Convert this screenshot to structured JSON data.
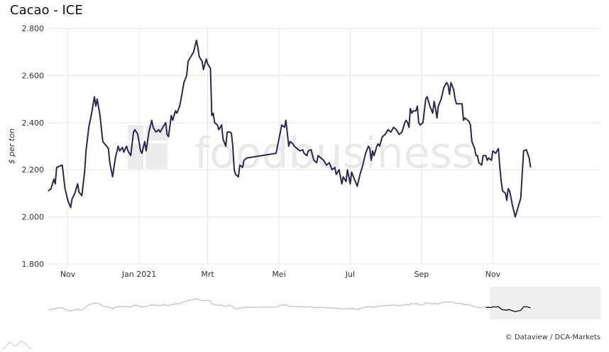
{
  "title": "Cacao - ICE",
  "credit": "© Dataview / DCA-Markets",
  "watermark": "foodbusiness",
  "chart_data": {
    "type": "line",
    "ylabel": "$ per ton",
    "ylim": [
      1800,
      2800
    ],
    "yticks": [
      {
        "value": 1800,
        "label": "1.800"
      },
      {
        "value": 2000,
        "label": "2.000"
      },
      {
        "value": 2200,
        "label": "2.200"
      },
      {
        "value": 2400,
        "label": "2.400"
      },
      {
        "value": 2600,
        "label": "2.600"
      },
      {
        "value": 2800,
        "label": "2.800"
      }
    ],
    "xlim": [
      0,
      395
    ],
    "xticks": [
      {
        "pos": 14,
        "label": "Nov"
      },
      {
        "pos": 65,
        "label": "Jan 2021"
      },
      {
        "pos": 114,
        "label": "Mrt"
      },
      {
        "pos": 165,
        "label": "Mei"
      },
      {
        "pos": 216,
        "label": "Jul"
      },
      {
        "pos": 267,
        "label": "Sep"
      },
      {
        "pos": 318,
        "label": "Nov"
      }
    ],
    "grid": true,
    "series": [
      {
        "color": "#2e2552",
        "points": [
          [
            0,
            2110
          ],
          [
            2,
            2120
          ],
          [
            4,
            2160
          ],
          [
            5,
            2140
          ],
          [
            6,
            2210
          ],
          [
            8,
            2215
          ],
          [
            10,
            2220
          ],
          [
            12,
            2120
          ],
          [
            14,
            2070
          ],
          [
            16,
            2040
          ],
          [
            17,
            2075
          ],
          [
            19,
            2100
          ],
          [
            21,
            2140
          ],
          [
            22,
            2105
          ],
          [
            24,
            2090
          ],
          [
            26,
            2190
          ],
          [
            27,
            2280
          ],
          [
            29,
            2380
          ],
          [
            31,
            2440
          ],
          [
            33,
            2510
          ],
          [
            34,
            2470
          ],
          [
            35,
            2500
          ],
          [
            37,
            2430
          ],
          [
            39,
            2320
          ],
          [
            41,
            2305
          ],
          [
            43,
            2290
          ],
          [
            44,
            2230
          ],
          [
            46,
            2170
          ],
          [
            48,
            2250
          ],
          [
            50,
            2300
          ],
          [
            51,
            2280
          ],
          [
            53,
            2295
          ],
          [
            54,
            2275
          ],
          [
            56,
            2300
          ],
          [
            57,
            2280
          ],
          [
            59,
            2260
          ],
          [
            61,
            2360
          ],
          [
            62,
            2370
          ],
          [
            64,
            2350
          ],
          [
            66,
            2280
          ],
          [
            67,
            2270
          ],
          [
            69,
            2320
          ],
          [
            70,
            2280
          ],
          [
            72,
            2360
          ],
          [
            74,
            2410
          ],
          [
            75,
            2380
          ],
          [
            77,
            2360
          ],
          [
            79,
            2370
          ],
          [
            80,
            2360
          ],
          [
            82,
            2380
          ],
          [
            84,
            2400
          ],
          [
            85,
            2350
          ],
          [
            86,
            2340
          ],
          [
            88,
            2430
          ],
          [
            89,
            2410
          ],
          [
            91,
            2450
          ],
          [
            92,
            2440
          ],
          [
            94,
            2470
          ],
          [
            95,
            2500
          ],
          [
            97,
            2570
          ],
          [
            99,
            2600
          ],
          [
            100,
            2660
          ],
          [
            102,
            2680
          ],
          [
            104,
            2700
          ],
          [
            106,
            2750
          ],
          [
            107,
            2720
          ],
          [
            108,
            2680
          ],
          [
            110,
            2660
          ],
          [
            111,
            2625
          ],
          [
            113,
            2670
          ],
          [
            114,
            2650
          ],
          [
            116,
            2630
          ],
          [
            117,
            2430
          ],
          [
            118,
            2440
          ],
          [
            119,
            2400
          ],
          [
            121,
            2390
          ],
          [
            122,
            2370
          ],
          [
            124,
            2390
          ],
          [
            125,
            2330
          ],
          [
            127,
            2300
          ],
          [
            128,
            2360
          ],
          [
            130,
            2360
          ],
          [
            131,
            2355
          ],
          [
            132,
            2300
          ],
          [
            133,
            2200
          ],
          [
            134,
            2180
          ],
          [
            136,
            2170
          ],
          [
            137,
            2220
          ],
          [
            139,
            2210
          ],
          [
            140,
            2240
          ],
          [
            142,
            2250
          ],
          [
            163,
            2270
          ],
          [
            164,
            2300
          ],
          [
            166,
            2360
          ],
          [
            167,
            2390
          ],
          [
            169,
            2380
          ],
          [
            170,
            2410
          ],
          [
            172,
            2300
          ],
          [
            173,
            2320
          ],
          [
            175,
            2310
          ],
          [
            176,
            2300
          ],
          [
            178,
            2290
          ],
          [
            180,
            2280
          ],
          [
            182,
            2285
          ],
          [
            183,
            2270
          ],
          [
            185,
            2260
          ],
          [
            186,
            2280
          ],
          [
            188,
            2285
          ],
          [
            190,
            2240
          ],
          [
            192,
            2230
          ],
          [
            193,
            2260
          ],
          [
            195,
            2250
          ],
          [
            197,
            2240
          ],
          [
            199,
            2220
          ],
          [
            201,
            2230
          ],
          [
            203,
            2200
          ],
          [
            205,
            2210
          ],
          [
            206,
            2180
          ],
          [
            208,
            2200
          ],
          [
            210,
            2140
          ],
          [
            211,
            2170
          ],
          [
            213,
            2150
          ],
          [
            214,
            2200
          ],
          [
            215,
            2170
          ],
          [
            216,
            2140
          ],
          [
            217,
            2190
          ],
          [
            219,
            2160
          ],
          [
            221,
            2130
          ],
          [
            223,
            2180
          ],
          [
            225,
            2220
          ],
          [
            227,
            2270
          ],
          [
            229,
            2300
          ],
          [
            230,
            2290
          ],
          [
            231,
            2240
          ],
          [
            232,
            2280
          ],
          [
            233,
            2260
          ],
          [
            235,
            2300
          ],
          [
            236,
            2310
          ],
          [
            237,
            2300
          ],
          [
            239,
            2340
          ],
          [
            241,
            2350
          ],
          [
            243,
            2370
          ],
          [
            245,
            2360
          ],
          [
            247,
            2380
          ],
          [
            249,
            2370
          ],
          [
            251,
            2350
          ],
          [
            253,
            2360
          ],
          [
            255,
            2400
          ],
          [
            256,
            2410
          ],
          [
            257,
            2400
          ],
          [
            258,
            2380
          ],
          [
            259,
            2460
          ],
          [
            260,
            2440
          ],
          [
            261,
            2450
          ],
          [
            263,
            2450
          ],
          [
            264,
            2470
          ],
          [
            265,
            2400
          ],
          [
            266,
            2390
          ],
          [
            268,
            2400
          ],
          [
            270,
            2500
          ],
          [
            271,
            2510
          ],
          [
            272,
            2490
          ],
          [
            273,
            2470
          ],
          [
            275,
            2440
          ],
          [
            276,
            2490
          ],
          [
            277,
            2460
          ],
          [
            278,
            2420
          ],
          [
            279,
            2470
          ],
          [
            281,
            2500
          ],
          [
            283,
            2550
          ],
          [
            285,
            2570
          ],
          [
            286,
            2560
          ],
          [
            287,
            2520
          ],
          [
            288,
            2570
          ],
          [
            290,
            2540
          ],
          [
            291,
            2500
          ],
          [
            292,
            2480
          ],
          [
            294,
            2480
          ],
          [
            296,
            2480
          ],
          [
            297,
            2410
          ],
          [
            298,
            2420
          ],
          [
            300,
            2410
          ],
          [
            301,
            2405
          ],
          [
            302,
            2390
          ],
          [
            303,
            2320
          ],
          [
            305,
            2290
          ],
          [
            306,
            2260
          ],
          [
            307,
            2260
          ],
          [
            308,
            2230
          ],
          [
            310,
            2220
          ],
          [
            311,
            2260
          ],
          [
            313,
            2260
          ],
          [
            314,
            2240
          ],
          [
            315,
            2250
          ],
          [
            317,
            2240
          ],
          [
            318,
            2280
          ],
          [
            320,
            2270
          ],
          [
            322,
            2290
          ],
          [
            323,
            2210
          ],
          [
            324,
            2150
          ],
          [
            325,
            2110
          ],
          [
            327,
            2100
          ],
          [
            328,
            2070
          ],
          [
            329,
            2120
          ],
          [
            330,
            2110
          ],
          [
            332,
            2050
          ],
          [
            334,
            2000
          ],
          [
            336,
            2040
          ],
          [
            338,
            2080
          ],
          [
            339,
            2180
          ],
          [
            340,
            2280
          ],
          [
            342,
            2285
          ],
          [
            344,
            2250
          ],
          [
            345,
            2210
          ]
        ]
      }
    ]
  },
  "navigator": {
    "series_color": "#c8c8c8",
    "selected_color": "#2b2b2b",
    "selected_start": 0.8
  }
}
